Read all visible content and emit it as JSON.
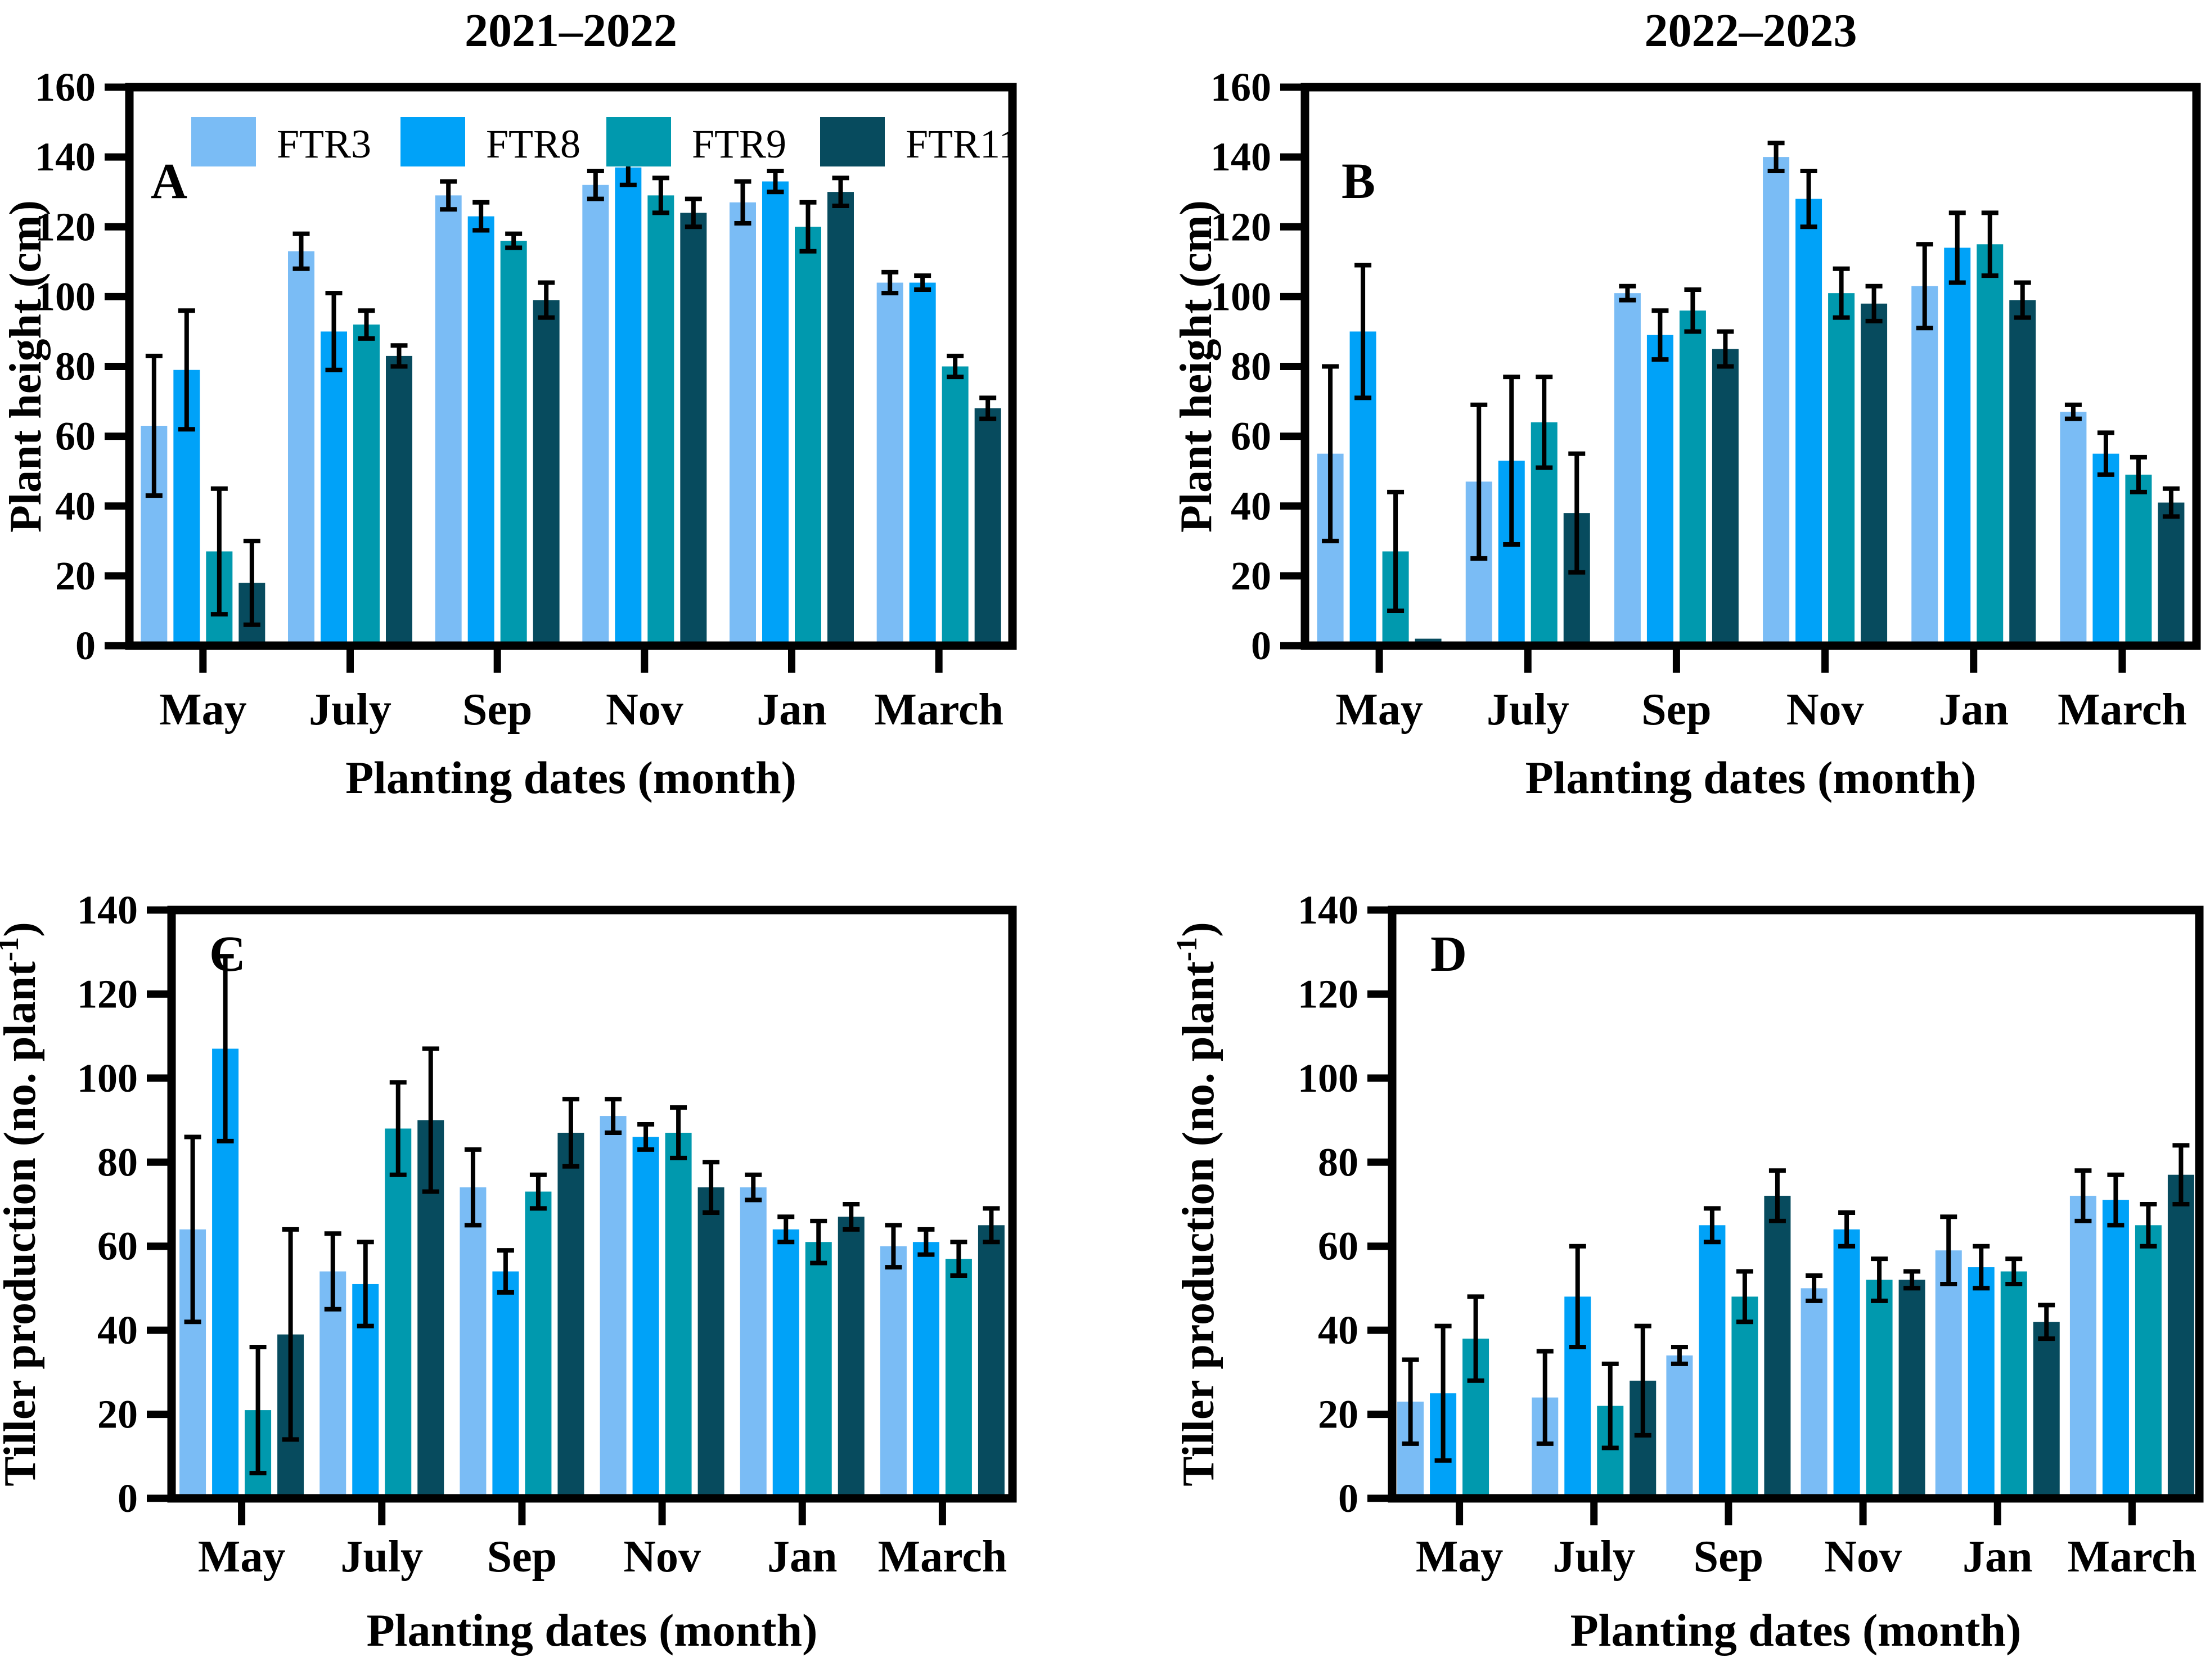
{
  "figure": {
    "series_labels": [
      "FTR3",
      "FTR8",
      "FTR9",
      "FTR11"
    ],
    "series_colors": [
      "#7ABCF5",
      "#00A2F8",
      "#0099AE",
      "#074B5E"
    ],
    "axis_color": "#000000",
    "error_bar_color": "#000000",
    "background_color": "#ffffff",
    "xlabel": "Planting dates (month)",
    "column_titles": [
      "2021–2022",
      "2022–2023"
    ]
  },
  "chart_data": [
    {
      "type": "bar",
      "panel_label": "A",
      "title": "2021–2022",
      "ylabel": "Plant height (cm)",
      "xlabel": "Planting dates (month)",
      "ylim": [
        0,
        160
      ],
      "yticks": [
        0,
        20,
        40,
        60,
        80,
        100,
        120,
        140,
        160
      ],
      "grid": false,
      "legend_position": "top-inside",
      "show_legend": true,
      "categories": [
        "May",
        "July",
        "Sep",
        "Nov",
        "Jan",
        "March"
      ],
      "series": [
        {
          "name": "FTR3",
          "values": [
            63,
            113,
            129,
            132,
            127,
            104
          ],
          "errors": [
            20,
            5,
            4,
            4,
            6,
            3
          ]
        },
        {
          "name": "FTR8",
          "values": [
            79,
            90,
            123,
            137,
            133,
            104
          ],
          "errors": [
            17,
            11,
            4,
            5,
            3,
            2
          ]
        },
        {
          "name": "FTR9",
          "values": [
            27,
            92,
            116,
            129,
            120,
            80
          ],
          "errors": [
            18,
            4,
            2,
            5,
            7,
            3
          ]
        },
        {
          "name": "FTR11",
          "values": [
            18,
            83,
            99,
            124,
            130,
            68
          ],
          "errors": [
            12,
            3,
            5,
            4,
            4,
            3
          ]
        }
      ]
    },
    {
      "type": "bar",
      "panel_label": "B",
      "title": "2022–2023",
      "ylabel": "Plant height (cm)",
      "xlabel": "Planting dates (month)",
      "ylim": [
        0,
        160
      ],
      "yticks": [
        0,
        20,
        40,
        60,
        80,
        100,
        120,
        140,
        160
      ],
      "grid": false,
      "show_legend": false,
      "categories": [
        "May",
        "July",
        "Sep",
        "Nov",
        "Jan",
        "March"
      ],
      "series": [
        {
          "name": "FTR3",
          "values": [
            55,
            47,
            101,
            140,
            103,
            67
          ],
          "errors": [
            25,
            22,
            2,
            4,
            12,
            2
          ]
        },
        {
          "name": "FTR8",
          "values": [
            90,
            53,
            89,
            128,
            114,
            55
          ],
          "errors": [
            19,
            24,
            7,
            8,
            10,
            6
          ]
        },
        {
          "name": "FTR9",
          "values": [
            27,
            64,
            96,
            101,
            115,
            49
          ],
          "errors": [
            17,
            13,
            6,
            7,
            9,
            5
          ]
        },
        {
          "name": "FTR11",
          "values": [
            2,
            38,
            85,
            98,
            99,
            41
          ],
          "errors": [
            0,
            17,
            5,
            5,
            5,
            4
          ]
        }
      ]
    },
    {
      "type": "bar",
      "panel_label": "C",
      "title": "",
      "ylabel": "Tiller production (no. plant⁻¹)",
      "xlabel": "Planting dates (month)",
      "ylim": [
        0,
        140
      ],
      "yticks": [
        0,
        20,
        40,
        60,
        80,
        100,
        120,
        140
      ],
      "grid": false,
      "show_legend": false,
      "categories": [
        "May",
        "July",
        "Sep",
        "Nov",
        "Jan",
        "March"
      ],
      "series": [
        {
          "name": "FTR3",
          "values": [
            64,
            54,
            74,
            91,
            74,
            60
          ],
          "errors": [
            22,
            9,
            9,
            4,
            3,
            5
          ]
        },
        {
          "name": "FTR8",
          "values": [
            107,
            51,
            54,
            86,
            64,
            61
          ],
          "errors": [
            22,
            10,
            5,
            3,
            3,
            3
          ]
        },
        {
          "name": "FTR9",
          "values": [
            21,
            88,
            73,
            87,
            61,
            57
          ],
          "errors": [
            15,
            11,
            4,
            6,
            5,
            4
          ]
        },
        {
          "name": "FTR11",
          "values": [
            39,
            90,
            87,
            74,
            67,
            65
          ],
          "errors": [
            25,
            17,
            8,
            6,
            3,
            4
          ]
        }
      ]
    },
    {
      "type": "bar",
      "panel_label": "D",
      "title": "",
      "ylabel": "Tiller production (no. plant⁻¹)",
      "xlabel": "Planting dates (month)",
      "ylim": [
        0,
        140
      ],
      "yticks": [
        0,
        20,
        40,
        60,
        80,
        100,
        120,
        140
      ],
      "grid": false,
      "show_legend": false,
      "categories": [
        "May",
        "July",
        "Sep",
        "Nov",
        "Jan",
        "March"
      ],
      "series": [
        {
          "name": "FTR3",
          "values": [
            23,
            24,
            34,
            50,
            59,
            72
          ],
          "errors": [
            10,
            11,
            2,
            3,
            8,
            6
          ]
        },
        {
          "name": "FTR8",
          "values": [
            25,
            48,
            65,
            64,
            55,
            71
          ],
          "errors": [
            16,
            12,
            4,
            4,
            5,
            6
          ]
        },
        {
          "name": "FTR9",
          "values": [
            38,
            22,
            48,
            52,
            54,
            65
          ],
          "errors": [
            10,
            10,
            6,
            5,
            3,
            5
          ]
        },
        {
          "name": "FTR11",
          "values": [
            0.5,
            28,
            72,
            52,
            42,
            77
          ],
          "errors": [
            0,
            13,
            6,
            2,
            4,
            7
          ]
        }
      ]
    }
  ]
}
